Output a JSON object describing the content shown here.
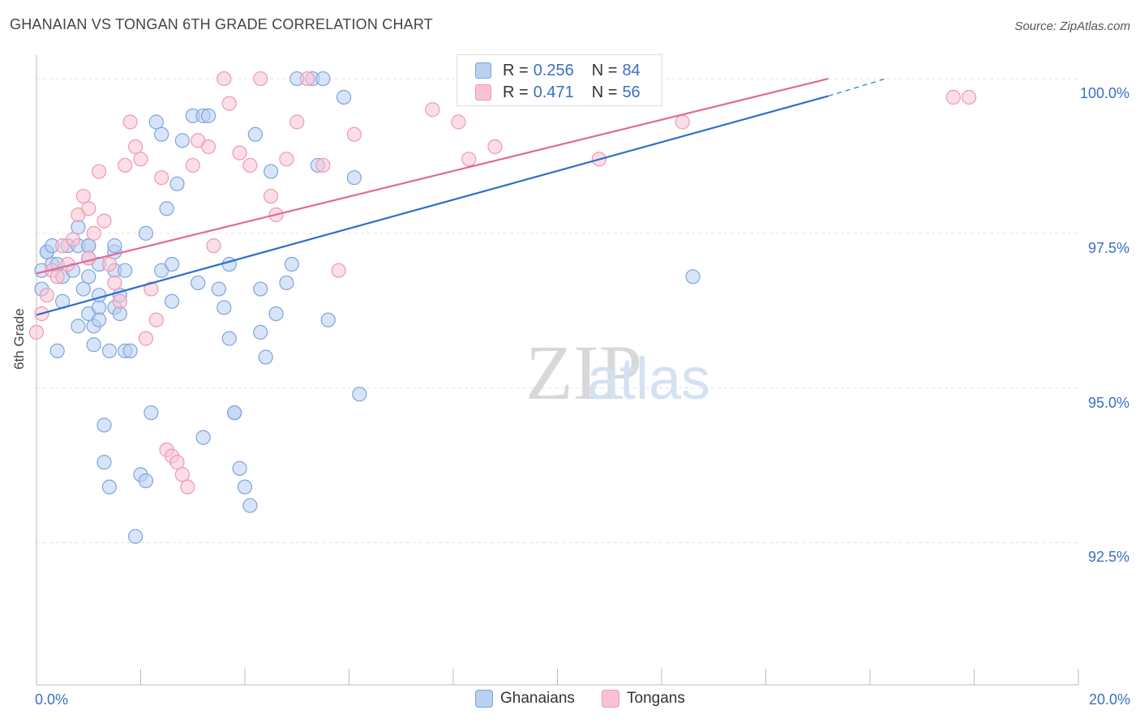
{
  "header": {
    "title": "GHANAIAN VS TONGAN 6TH GRADE CORRELATION CHART",
    "source": "Source: ZipAtlas.com"
  },
  "watermark": {
    "zip": "ZIP",
    "atlas": "atlas"
  },
  "legend_top": {
    "rows": [
      {
        "r_label": "R =",
        "r_value": "0.256",
        "n_label": "N =",
        "n_value": "84"
      },
      {
        "r_label": "R =",
        "r_value": "0.471",
        "n_label": "N =",
        "n_value": "56"
      }
    ]
  },
  "legend_bottom": {
    "items": [
      "Ghanaians",
      "Tongans"
    ]
  },
  "colors": {
    "ghanaian_fill": "#b8d0f2",
    "ghanaian_stroke": "#7ea4dd",
    "ghanaian_line": "#2b6fcc",
    "tongan_fill": "#f9c2d2",
    "tongan_stroke": "#ee98b2",
    "tongan_line": "#e06a93",
    "tick_label": "#3a6fc4",
    "grid": "#e2e2e2"
  },
  "chart_data": {
    "type": "scatter",
    "title": "GHANAIAN VS TONGAN 6TH GRADE CORRELATION CHART",
    "xlabel": "",
    "ylabel": "6th Grade",
    "xlim": [
      0,
      20
    ],
    "ylim": [
      90.2,
      100.25
    ],
    "x_tick_labels": [
      {
        "value": 0,
        "label": "0.0%"
      },
      {
        "value": 20,
        "label": "20.0%"
      }
    ],
    "y_tick_labels": [
      {
        "value": 100,
        "label": "100.0%"
      },
      {
        "value": 97.5,
        "label": "97.5%"
      },
      {
        "value": 95,
        "label": "95.0%"
      },
      {
        "value": 92.5,
        "label": "92.5%"
      }
    ],
    "grid": true,
    "legend_position": "bottom",
    "series": [
      {
        "name": "Ghanaians",
        "r": 0.256,
        "n": 84,
        "trend": {
          "x": [
            0,
            15.2
          ],
          "y": [
            96.18,
            99.72
          ],
          "dashed_to": [
            16.3,
            100.0
          ]
        },
        "points": [
          [
            0.1,
            96.9
          ],
          [
            0.1,
            96.6
          ],
          [
            0.2,
            97.2
          ],
          [
            0.2,
            97.2
          ],
          [
            0.3,
            97.3
          ],
          [
            0.3,
            97.0
          ],
          [
            0.4,
            95.6
          ],
          [
            0.4,
            97.0
          ],
          [
            0.5,
            96.8
          ],
          [
            0.5,
            96.4
          ],
          [
            0.6,
            97.3
          ],
          [
            0.7,
            96.9
          ],
          [
            0.8,
            97.6
          ],
          [
            0.8,
            97.3
          ],
          [
            0.8,
            96.0
          ],
          [
            0.9,
            96.6
          ],
          [
            1.0,
            96.8
          ],
          [
            1.0,
            97.3
          ],
          [
            1.0,
            97.3
          ],
          [
            1.0,
            97.1
          ],
          [
            1.0,
            96.2
          ],
          [
            1.1,
            95.7
          ],
          [
            1.1,
            96.0
          ],
          [
            1.2,
            96.3
          ],
          [
            1.2,
            97.0
          ],
          [
            1.2,
            96.5
          ],
          [
            1.2,
            96.1
          ],
          [
            1.3,
            94.4
          ],
          [
            1.3,
            93.8
          ],
          [
            1.4,
            93.4
          ],
          [
            1.4,
            95.6
          ],
          [
            1.5,
            96.9
          ],
          [
            1.5,
            96.3
          ],
          [
            1.5,
            97.2
          ],
          [
            1.5,
            97.3
          ],
          [
            1.6,
            96.2
          ],
          [
            1.6,
            96.5
          ],
          [
            1.7,
            96.9
          ],
          [
            1.7,
            95.6
          ],
          [
            1.8,
            95.6
          ],
          [
            1.9,
            92.6
          ],
          [
            2.0,
            93.6
          ],
          [
            2.1,
            93.5
          ],
          [
            2.1,
            97.5
          ],
          [
            2.2,
            94.6
          ],
          [
            2.3,
            99.3
          ],
          [
            2.4,
            99.1
          ],
          [
            2.4,
            96.9
          ],
          [
            2.5,
            97.9
          ],
          [
            2.6,
            97.0
          ],
          [
            2.6,
            96.4
          ],
          [
            2.7,
            98.3
          ],
          [
            2.8,
            99.0
          ],
          [
            3.0,
            99.4
          ],
          [
            3.1,
            96.7
          ],
          [
            3.2,
            94.2
          ],
          [
            3.2,
            99.4
          ],
          [
            3.3,
            99.4
          ],
          [
            3.5,
            96.6
          ],
          [
            3.6,
            96.3
          ],
          [
            3.7,
            97.0
          ],
          [
            3.7,
            95.8
          ],
          [
            3.8,
            94.6
          ],
          [
            3.8,
            94.6
          ],
          [
            3.9,
            93.7
          ],
          [
            4.0,
            93.4
          ],
          [
            4.1,
            93.1
          ],
          [
            4.2,
            99.1
          ],
          [
            4.3,
            96.6
          ],
          [
            4.3,
            95.9
          ],
          [
            4.4,
            95.5
          ],
          [
            4.5,
            98.5
          ],
          [
            4.6,
            96.2
          ],
          [
            4.8,
            96.7
          ],
          [
            4.9,
            97.0
          ],
          [
            5.0,
            100.0
          ],
          [
            5.3,
            100.0
          ],
          [
            5.4,
            98.6
          ],
          [
            5.5,
            100.0
          ],
          [
            5.6,
            96.1
          ],
          [
            5.9,
            99.7
          ],
          [
            6.1,
            98.4
          ],
          [
            6.2,
            94.9
          ],
          [
            12.6,
            96.8
          ]
        ]
      },
      {
        "name": "Tongans",
        "r": 0.471,
        "n": 56,
        "trend": {
          "x": [
            0,
            15.2
          ],
          "y": [
            96.85,
            100.0
          ]
        },
        "points": [
          [
            0.0,
            95.9
          ],
          [
            0.1,
            96.2
          ],
          [
            0.2,
            96.5
          ],
          [
            0.3,
            96.9
          ],
          [
            0.4,
            96.8
          ],
          [
            0.5,
            97.3
          ],
          [
            0.6,
            97.0
          ],
          [
            0.7,
            97.4
          ],
          [
            0.8,
            97.8
          ],
          [
            0.9,
            98.1
          ],
          [
            1.0,
            97.9
          ],
          [
            1.0,
            97.1
          ],
          [
            1.1,
            97.5
          ],
          [
            1.2,
            98.5
          ],
          [
            1.3,
            97.7
          ],
          [
            1.4,
            97.0
          ],
          [
            1.5,
            96.7
          ],
          [
            1.6,
            96.4
          ],
          [
            1.7,
            98.6
          ],
          [
            1.8,
            99.3
          ],
          [
            1.9,
            98.9
          ],
          [
            2.0,
            98.7
          ],
          [
            2.1,
            95.8
          ],
          [
            2.2,
            96.6
          ],
          [
            2.3,
            96.1
          ],
          [
            2.4,
            98.4
          ],
          [
            2.5,
            94.0
          ],
          [
            2.6,
            93.9
          ],
          [
            2.7,
            93.8
          ],
          [
            2.8,
            93.6
          ],
          [
            2.9,
            93.4
          ],
          [
            3.0,
            98.6
          ],
          [
            3.1,
            99.0
          ],
          [
            3.3,
            98.9
          ],
          [
            3.4,
            97.3
          ],
          [
            3.6,
            100.0
          ],
          [
            3.7,
            99.6
          ],
          [
            3.9,
            98.8
          ],
          [
            4.1,
            98.6
          ],
          [
            4.3,
            100.0
          ],
          [
            4.5,
            98.1
          ],
          [
            4.6,
            97.8
          ],
          [
            4.8,
            98.7
          ],
          [
            5.0,
            99.3
          ],
          [
            5.2,
            100.0
          ],
          [
            5.5,
            98.6
          ],
          [
            5.8,
            96.9
          ],
          [
            6.1,
            99.1
          ],
          [
            7.6,
            99.5
          ],
          [
            8.1,
            99.3
          ],
          [
            8.3,
            98.7
          ],
          [
            8.8,
            98.9
          ],
          [
            10.8,
            98.7
          ],
          [
            12.4,
            99.3
          ],
          [
            17.6,
            99.7
          ],
          [
            17.9,
            99.7
          ]
        ]
      }
    ]
  }
}
